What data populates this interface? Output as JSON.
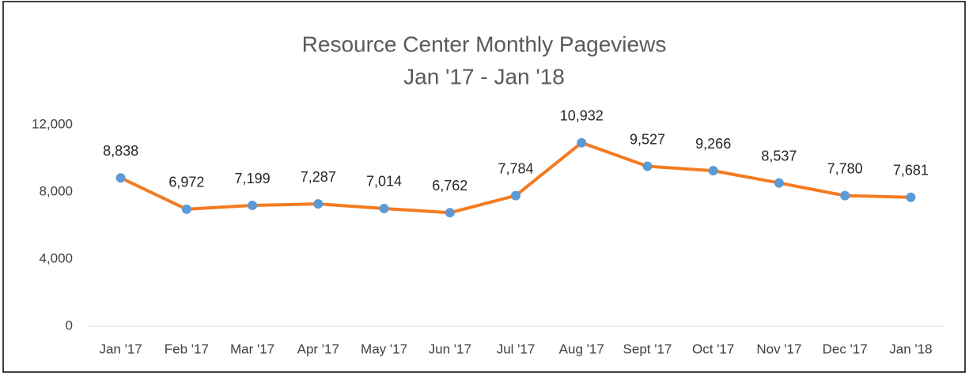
{
  "chart_data": {
    "type": "line",
    "title": "Resource Center Monthly Pageviews",
    "subtitle": "Jan '17 - Jan '18",
    "categories": [
      "Jan '17",
      "Feb '17",
      "Mar '17",
      "Apr '17",
      "May '17",
      "Jun '17",
      "Jul '17",
      "Aug '17",
      "Sept '17",
      "Oct '17",
      "Nov '17",
      "Dec '17",
      "Jan '18"
    ],
    "series": [
      {
        "name": "Pageviews",
        "color": "#f47b20",
        "marker_color": "#5b9bd5",
        "values": [
          8838,
          6972,
          7199,
          7287,
          7014,
          6762,
          7784,
          10932,
          9527,
          9266,
          8537,
          7780,
          7681
        ],
        "value_labels": [
          "8,838",
          "6,972",
          "7,199",
          "7,287",
          "7,014",
          "6,762",
          "7,784",
          "10,932",
          "9,527",
          "9,266",
          "8,537",
          "7,780",
          "7,681"
        ]
      }
    ],
    "ylim": [
      0,
      12000
    ],
    "yticks": [
      0,
      {
        "value": 4000,
        "label": "4,000"
      },
      {
        "value": 8000,
        "label": "8,000"
      },
      {
        "value": 12000,
        "label": "12,000"
      }
    ],
    "grid": false
  }
}
